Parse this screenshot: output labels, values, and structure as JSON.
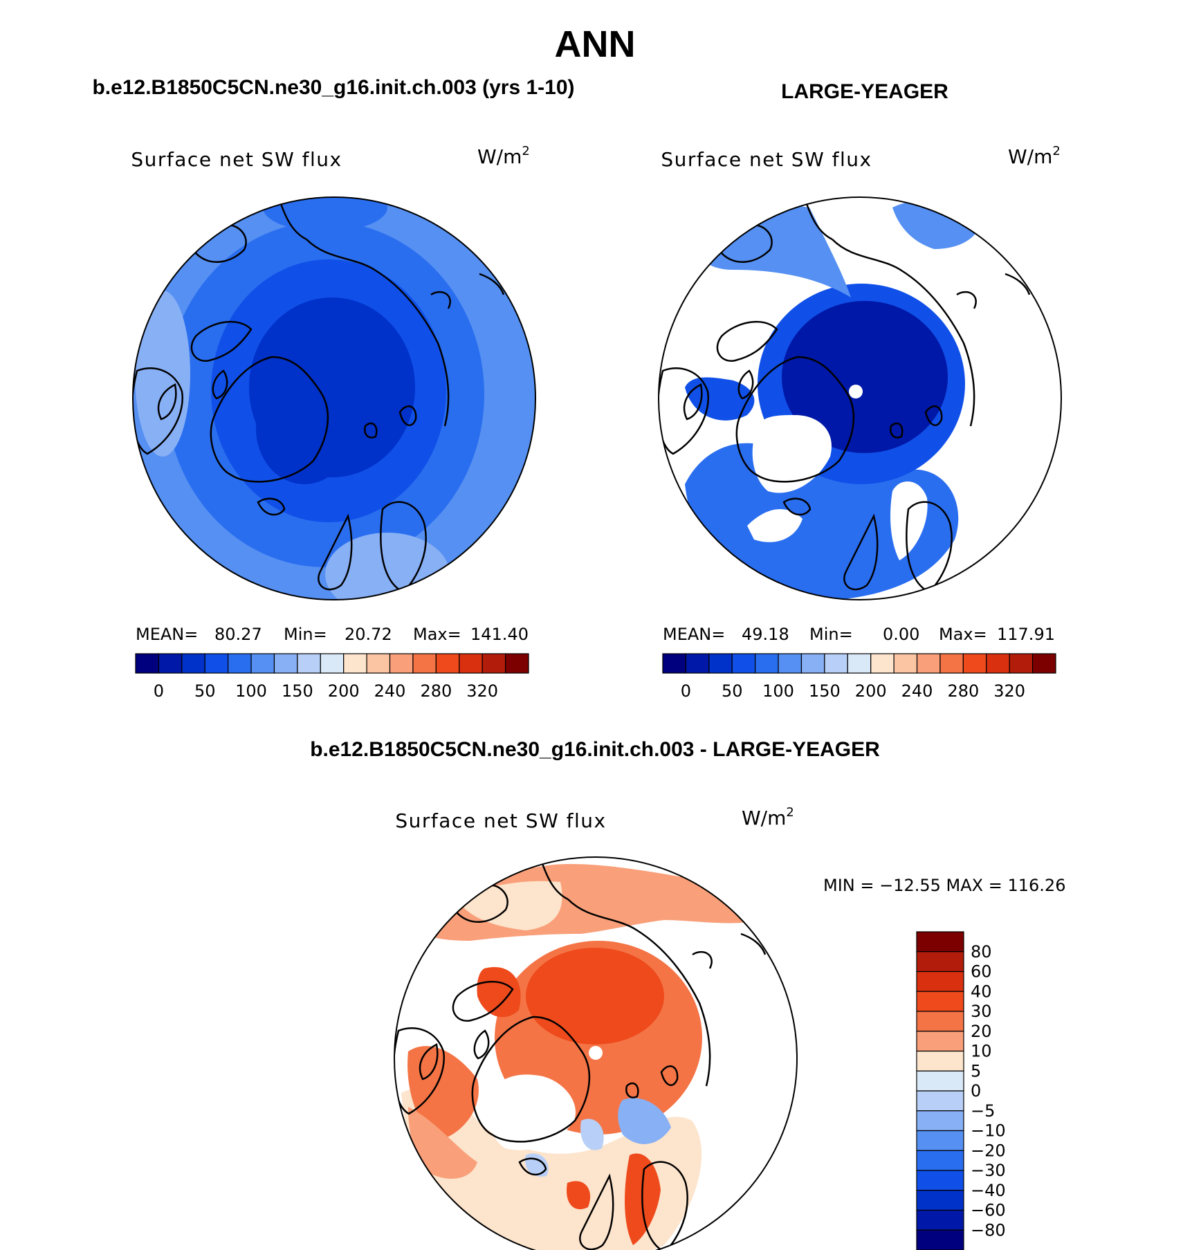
{
  "title": "ANN",
  "panels": [
    {
      "id": "model",
      "case_label": "b.e12.B1850C5CN.ne30_g16.init.ch.003 (yrs 1-10)",
      "variable": "Surface net SW flux",
      "units_base": "W/m",
      "units_exp": "2",
      "stats": {
        "mean_label": "MEAN=",
        "mean": "80.27",
        "min_label": "Min=",
        "min": "20.72",
        "max_label": "Max=",
        "max": "141.40"
      },
      "has_missing": false
    },
    {
      "id": "obs",
      "case_label": "LARGE-YEAGER",
      "variable": "Surface net SW flux",
      "units_base": "W/m",
      "units_exp": "2",
      "stats": {
        "mean_label": "MEAN=",
        "mean": "49.18",
        "min_label": "Min=",
        "min": "0.00",
        "max_label": "Max=",
        "max": "117.91"
      },
      "has_missing": true
    }
  ],
  "horizontal_colorbar": {
    "colors": [
      "#00007f",
      "#0018a8",
      "#0031c9",
      "#1050e8",
      "#2a6ef0",
      "#5590f2",
      "#88b0f5",
      "#b8d0f7",
      "#dae9f8",
      "#fde4cc",
      "#fbc4a3",
      "#f9a07a",
      "#f47446",
      "#ee4a1c",
      "#d93010",
      "#b21d0b",
      "#7d0000"
    ],
    "ticks": [
      "0",
      "50",
      "100",
      "150",
      "200",
      "240",
      "280",
      "320"
    ]
  },
  "difference": {
    "case_label": "b.e12.B1850C5CN.ne30_g16.init.ch.003 - LARGE-YEAGER",
    "variable": "Surface net SW flux",
    "units_base": "W/m",
    "units_exp": "2",
    "minmax": "MIN = −12.55  MAX = 116.26",
    "colors_top_to_bottom": [
      "#7d0000",
      "#b21d0b",
      "#d93010",
      "#ee4a1c",
      "#f47446",
      "#f9a07a",
      "#fde4cc",
      "#dae9f8",
      "#b8d0f7",
      "#88b0f5",
      "#5590f2",
      "#2a6ef0",
      "#1050e8",
      "#0031c9",
      "#0018a8",
      "#00007f"
    ],
    "ticks": [
      "80",
      "60",
      "40",
      "30",
      "20",
      "10",
      "5",
      "0",
      "−5",
      "−10",
      "−20",
      "−30",
      "−40",
      "−60",
      "−80"
    ]
  }
}
